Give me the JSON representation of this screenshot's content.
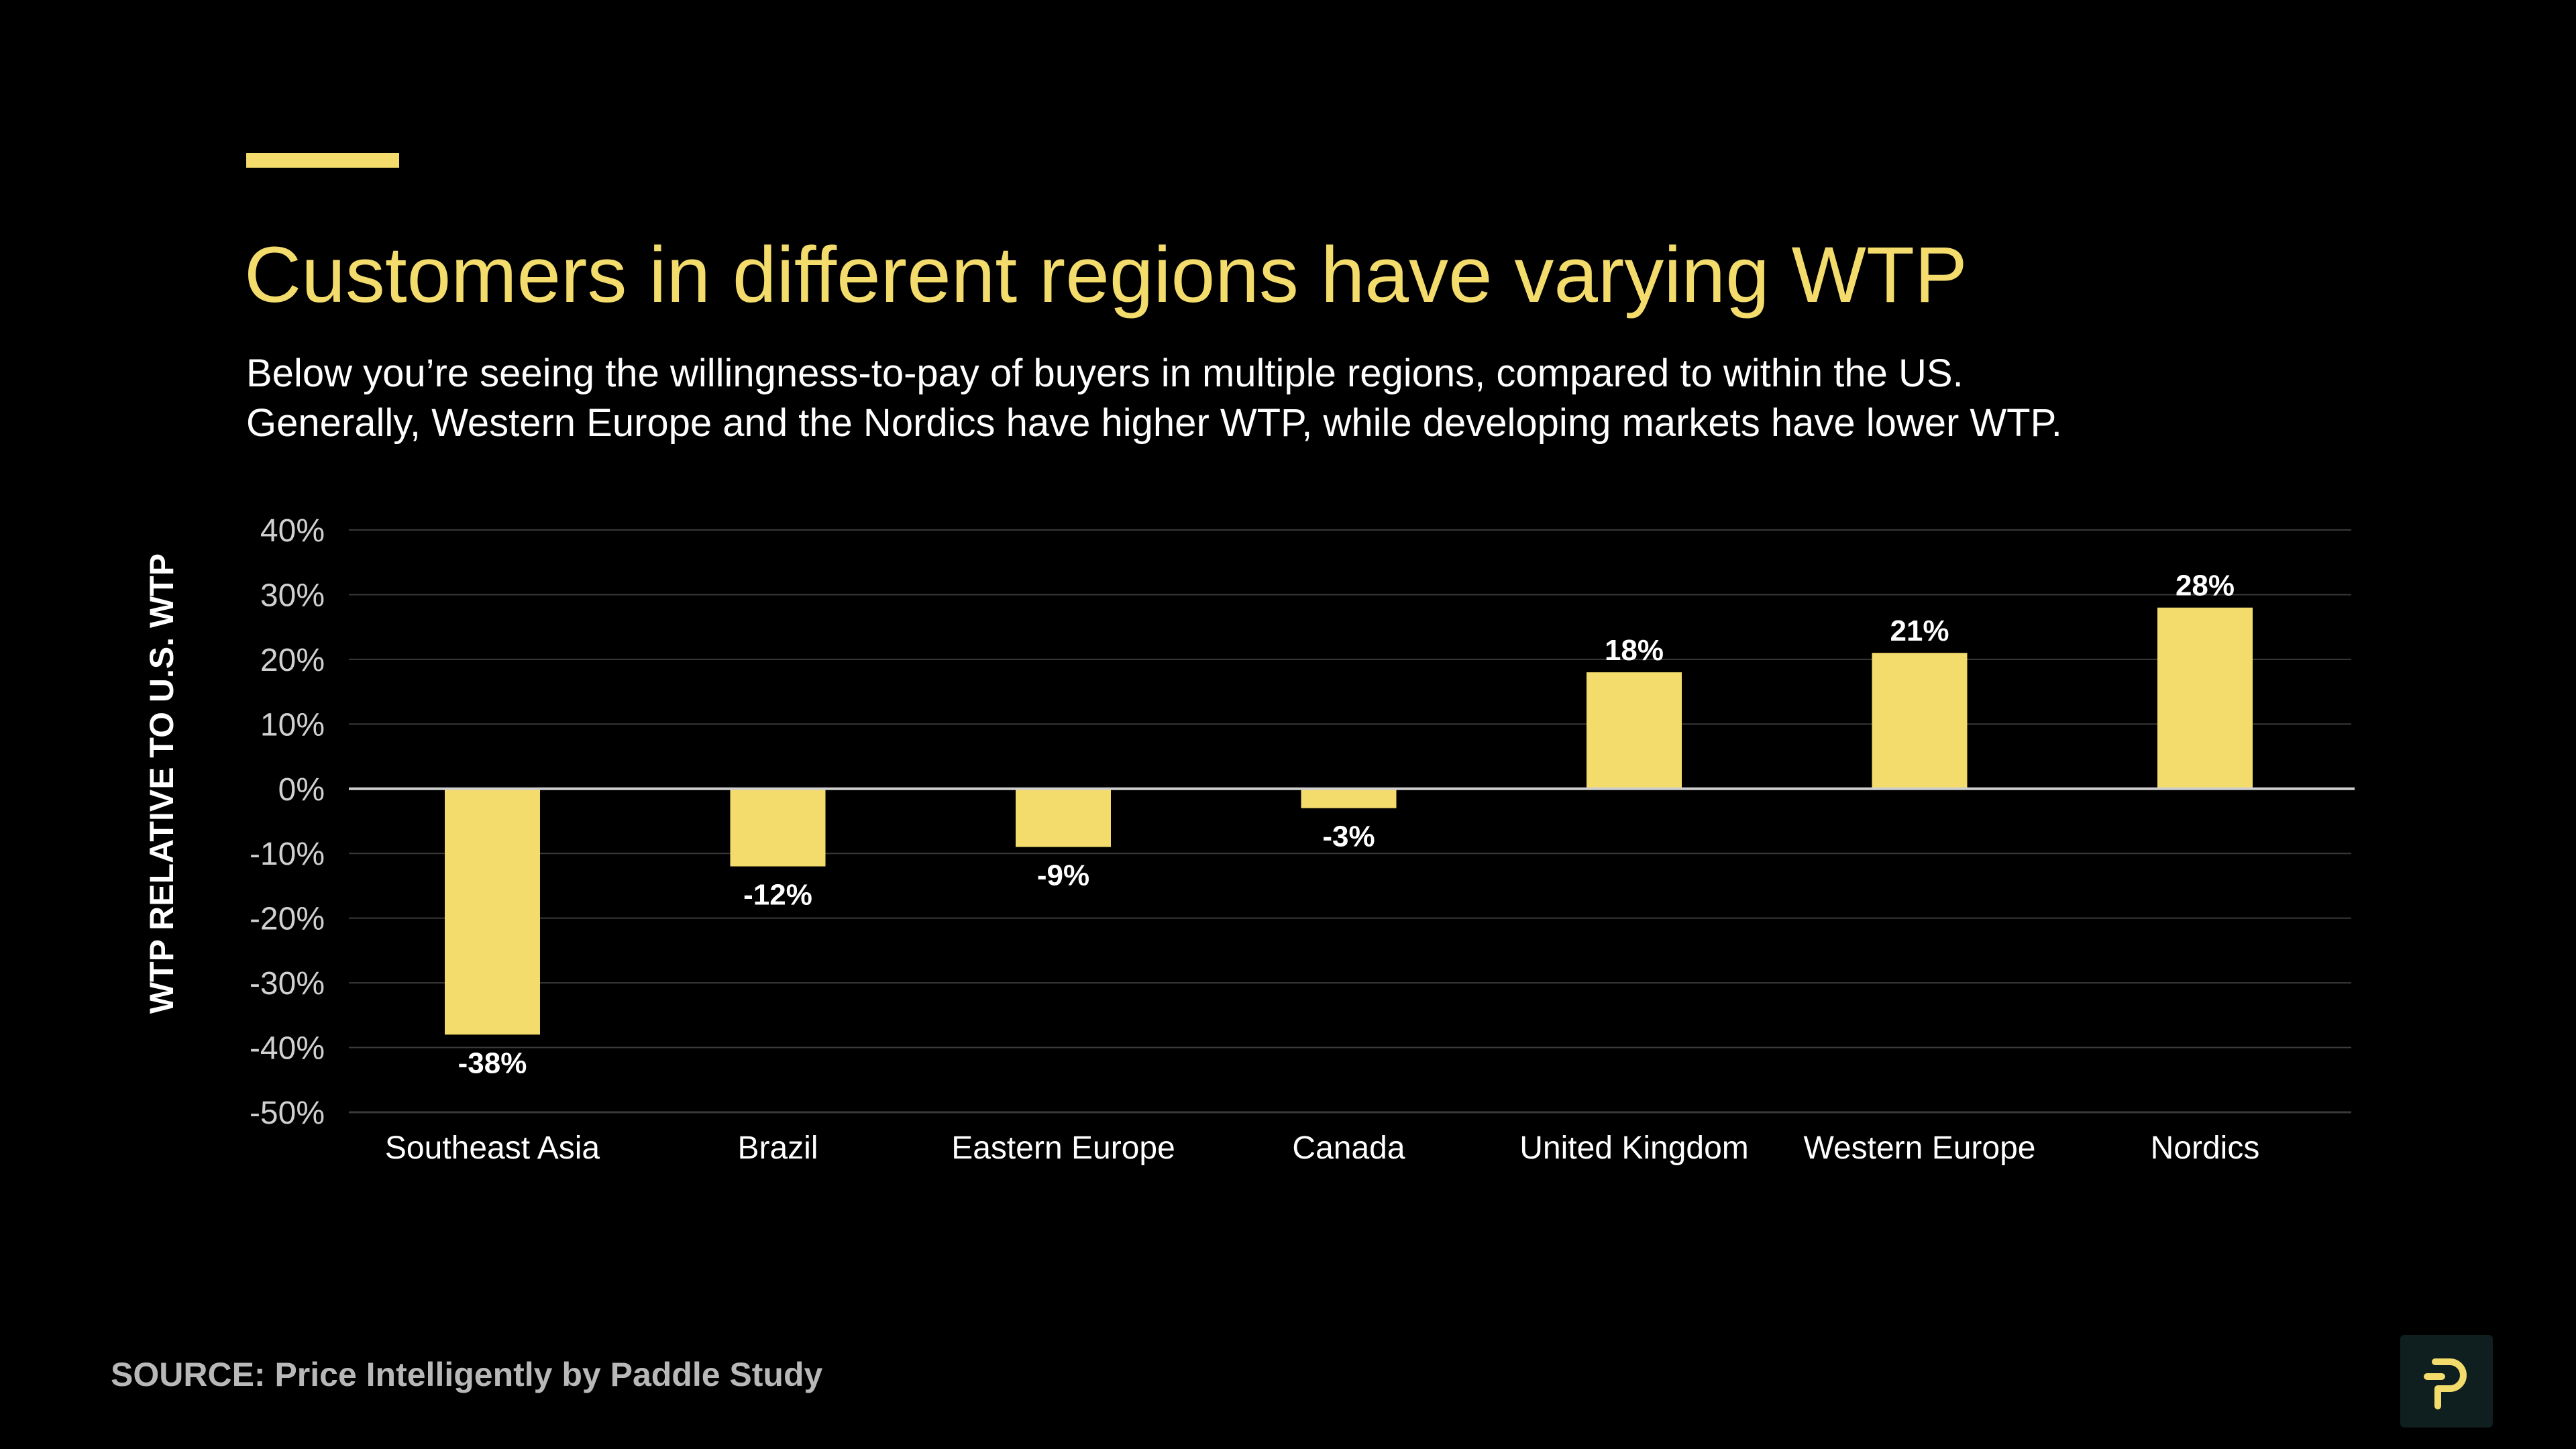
{
  "header": {
    "title": "Customers in different regions have varying WTP",
    "subtitle_lines": [
      "Below you’re seeing the willingness-to-pay of buyers in multiple regions, compared to within the US.",
      "Generally, Western Europe and the Nordics have higher WTP, while developing markets have lower WTP."
    ]
  },
  "colors": {
    "accent": "#f3dc6c",
    "background": "#000000",
    "bar": "#f3dc6c",
    "gridline": "#3a3a3a",
    "zero_line": "#cfcfcf",
    "source_text": "#b8b8b8"
  },
  "chart_data": {
    "type": "bar",
    "title": "",
    "xlabel": "",
    "ylabel": "WTP RELATIVE TO U.S. WTP",
    "categories": [
      "Southeast Asia",
      "Brazil",
      "Eastern Europe",
      "Canada",
      "United Kingdom",
      "Western Europe",
      "Nordics"
    ],
    "values": [
      -38,
      -12,
      -9,
      -3,
      18,
      21,
      28
    ],
    "value_labels": [
      "-38%",
      "-12%",
      "-9%",
      "-3%",
      "18%",
      "21%",
      "28%"
    ],
    "ylim": [
      -50,
      40
    ],
    "yticks": [
      40,
      30,
      20,
      10,
      0,
      -10,
      -20,
      -30,
      -40,
      -50
    ],
    "ytick_labels": [
      "40%",
      "30%",
      "20%",
      "10%",
      "0%",
      "-10%",
      "-20%",
      "-30%",
      "-40%",
      "-50%"
    ],
    "grid": true,
    "legend": "none"
  },
  "footer": {
    "source": "SOURCE: Price Intelligently by Paddle Study"
  },
  "logo": {
    "icon": "paddle-logo-icon"
  }
}
